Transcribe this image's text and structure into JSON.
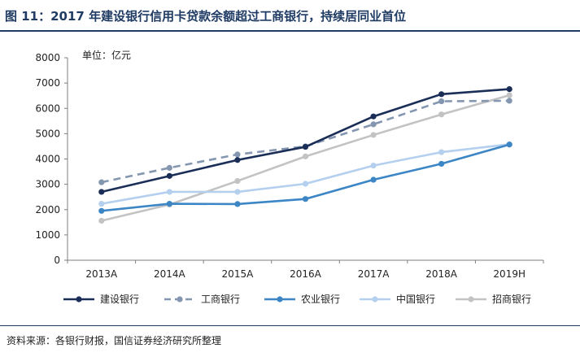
{
  "header": {
    "title": "图 11：2017 年建设银行信用卡贷款余额超过工商银行，持续居同业首位"
  },
  "footer": {
    "source": "资料来源：各银行财报，国信证券经济研究所整理"
  },
  "chart_data": {
    "type": "line",
    "title": "",
    "unit_label": "单位：亿元",
    "xlabel": "",
    "ylabel": "",
    "categories": [
      "2013A",
      "2014A",
      "2015A",
      "2016A",
      "2017A",
      "2018A",
      "2019H"
    ],
    "ylim": [
      0,
      8000
    ],
    "yticks": [
      0,
      1000,
      2000,
      3000,
      4000,
      5000,
      6000,
      7000,
      8000
    ],
    "grid": false,
    "legend_position": "bottom",
    "series": [
      {
        "name": "建设银行",
        "color": "#1a2e57",
        "dashed": false,
        "values": [
          2700,
          3330,
          3960,
          4480,
          5680,
          6560,
          6760
        ]
      },
      {
        "name": "工商银行",
        "color": "#8496b0",
        "dashed": true,
        "values": [
          3080,
          3650,
          4180,
          4500,
          5370,
          6280,
          6300
        ]
      },
      {
        "name": "农业银行",
        "color": "#3c86c6",
        "dashed": false,
        "values": [
          1950,
          2230,
          2220,
          2420,
          3180,
          3810,
          4570
        ]
      },
      {
        "name": "中国银行",
        "color": "#b4d0ee",
        "dashed": false,
        "values": [
          2230,
          2700,
          2700,
          3020,
          3740,
          4270,
          4580
        ]
      },
      {
        "name": "招商银行",
        "color": "#c3c3c3",
        "dashed": false,
        "values": [
          1560,
          2200,
          3130,
          4100,
          4950,
          5760,
          6520
        ]
      }
    ]
  }
}
